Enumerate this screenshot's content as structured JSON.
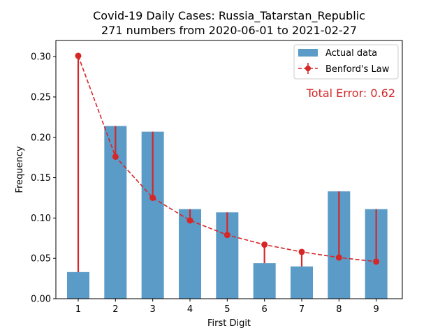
{
  "chart_data": {
    "type": "bar",
    "title": "Covid-19 Daily Cases: Russia_Tatarstan_Republic",
    "subtitle": "271 numbers from 2020-06-01 to 2021-02-27",
    "xlabel": "First Digit",
    "ylabel": "Frequency",
    "categories": [
      "1",
      "2",
      "3",
      "4",
      "5",
      "6",
      "7",
      "8",
      "9"
    ],
    "ylim": [
      0,
      0.32
    ],
    "yticks": [
      "0.00",
      "0.05",
      "0.10",
      "0.15",
      "0.20",
      "0.25",
      "0.30"
    ],
    "grid": false,
    "legend_position": "top-right",
    "series": [
      {
        "name": "Actual data",
        "type": "bar",
        "color": "#5b9bc8",
        "values": [
          0.033,
          0.214,
          0.207,
          0.111,
          0.107,
          0.044,
          0.04,
          0.133,
          0.111
        ]
      },
      {
        "name": "Benford's Law",
        "type": "line",
        "style": "dashed",
        "marker": "circle",
        "color": "#d62728",
        "values": [
          0.301,
          0.176,
          0.125,
          0.097,
          0.079,
          0.067,
          0.058,
          0.051,
          0.046
        ]
      }
    ],
    "annotation": {
      "text": "Total Error: 0.62",
      "color": "#d62728",
      "position": "top-right"
    }
  }
}
